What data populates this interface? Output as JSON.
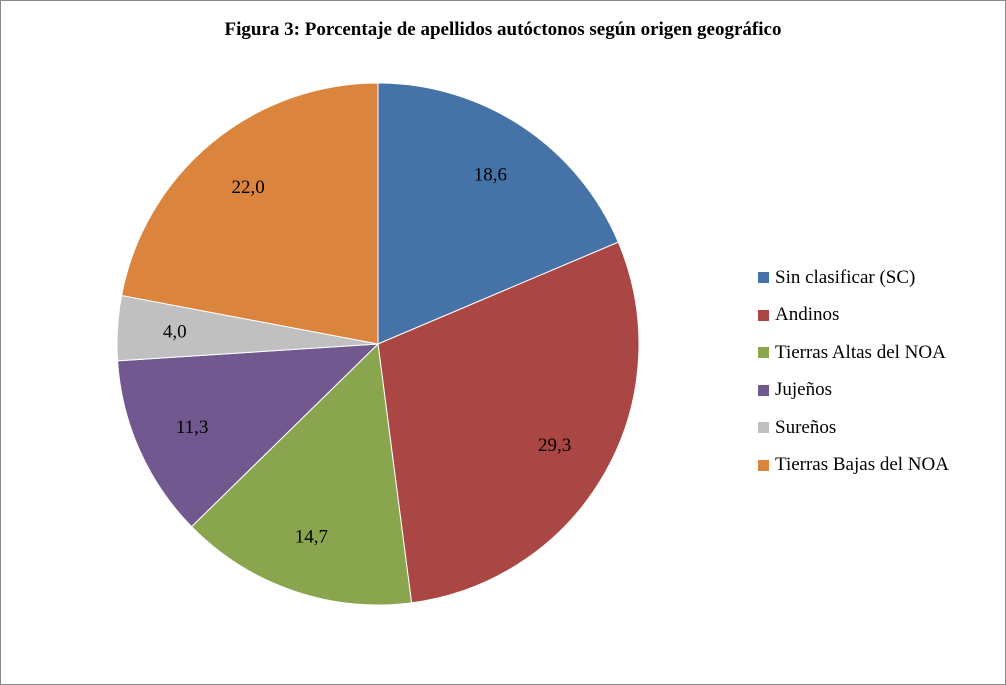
{
  "chart_data": {
    "type": "pie",
    "title": "Figura 3: Porcentaje de apellidos  autóctonos según origen geográfico",
    "categories": [
      "Sin clasificar (SC)",
      "Andinos",
      "Tierras Altas del NOA",
      "Jujeños",
      "Sureños",
      "Tierras Bajas del NOA"
    ],
    "values": [
      18.6,
      29.3,
      14.7,
      11.3,
      4.0,
      22.0
    ],
    "data_labels": [
      "18,6",
      "29,3",
      "14,7",
      "11,3",
      "4,0",
      "22,0"
    ],
    "colors": [
      "#4572A7",
      "#AA4643",
      "#89A54E",
      "#71588F",
      "#C0C0C0",
      "#DB843D"
    ],
    "legend_position": "right"
  }
}
